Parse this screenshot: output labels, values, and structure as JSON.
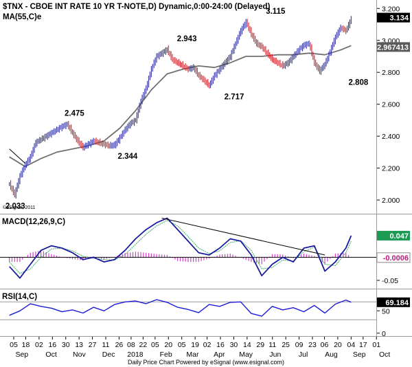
{
  "colors": {
    "up_bar": "#2f2fa0",
    "down_bar": "#d0202a",
    "ma_line": "#707070",
    "macd_line": "#1a1aa0",
    "signal_line": "#38a86a",
    "histogram": "#d040c8",
    "rsi_line": "#1a1ad8",
    "trendline": "#000000",
    "value_box": "#000000",
    "macd_value_box": "#1a9a52",
    "macd_hist_box": "#ffffff"
  },
  "chart_data": [
    {
      "type": "line",
      "panel": "price",
      "title": "$TNX - CBOE INT RATE 10 YR T-NOTE,D) Dynamic,0:00-24:00 (Delayed)",
      "subtitle": "MA(55,C)e",
      "watermark": "©eSignal, 2011",
      "ylim": [
        1.94,
        3.24
      ],
      "yticks": [
        2.0,
        2.2,
        2.4,
        2.6,
        2.8,
        3.0,
        3.2
      ],
      "ytick_labels": [
        "2.000",
        "2.200",
        "2.400",
        "2.600",
        "2.800",
        "3.000",
        "3.200"
      ],
      "last_value_labels": [
        {
          "label": "3.134",
          "value": 3.134,
          "style": "dark"
        },
        {
          "label": "2.967413",
          "value": 2.967,
          "style": "grey"
        }
      ],
      "series": [
        {
          "name": "$TNX",
          "style": "ohlc",
          "x": [
            0,
            4,
            8,
            12,
            16,
            20,
            24,
            28,
            32,
            36,
            40,
            44,
            48,
            52,
            56,
            60,
            64,
            68,
            72,
            76,
            80,
            84,
            88,
            92,
            96,
            100,
            104,
            108,
            112,
            116,
            120,
            124,
            128,
            132,
            136,
            140,
            144,
            148,
            152,
            156,
            160,
            164,
            168,
            172,
            176,
            180,
            184,
            188,
            192,
            196,
            200,
            204,
            208,
            212,
            216,
            220,
            224,
            228,
            232,
            236,
            240,
            244,
            248,
            252,
            256,
            260
          ],
          "values": [
            2.1,
            2.033,
            2.15,
            2.22,
            2.27,
            2.36,
            2.38,
            2.4,
            2.42,
            2.44,
            2.46,
            2.475,
            2.42,
            2.37,
            2.33,
            2.35,
            2.37,
            2.36,
            2.35,
            2.34,
            2.344,
            2.39,
            2.44,
            2.48,
            2.5,
            2.62,
            2.7,
            2.82,
            2.9,
            2.92,
            2.943,
            2.88,
            2.86,
            2.84,
            2.82,
            2.83,
            2.78,
            2.75,
            2.717,
            2.78,
            2.82,
            2.86,
            2.9,
            2.98,
            3.06,
            3.115,
            3.04,
            2.98,
            2.96,
            2.92,
            2.88,
            2.86,
            2.84,
            2.86,
            2.9,
            2.94,
            2.97,
            2.98,
            2.86,
            2.808,
            2.85,
            2.93,
            3.02,
            3.08,
            3.06,
            3.134
          ]
        },
        {
          "name": "MA(55,C)e",
          "x": [
            0,
            12,
            24,
            36,
            48,
            60,
            72,
            84,
            96,
            108,
            120,
            132,
            144,
            156,
            168,
            180,
            192,
            204,
            216,
            228,
            240,
            252,
            260
          ],
          "values": [
            2.27,
            2.21,
            2.26,
            2.3,
            2.32,
            2.34,
            2.37,
            2.45,
            2.56,
            2.69,
            2.79,
            2.82,
            2.84,
            2.83,
            2.86,
            2.9,
            2.9,
            2.91,
            2.91,
            2.92,
            2.91,
            2.94,
            2.967
          ]
        }
      ],
      "annotations": [
        {
          "label": "2.033",
          "x": 1,
          "value": 2.033
        },
        {
          "label": "2.475",
          "x": 11,
          "value": 2.475
        },
        {
          "label": "2.344",
          "x": 20,
          "value": 2.344
        },
        {
          "label": "2.943",
          "x": 30,
          "value": 2.943
        },
        {
          "label": "2.717",
          "x": 38,
          "value": 2.717
        },
        {
          "label": "3.115",
          "x": 45,
          "value": 3.115
        },
        {
          "label": "2.808",
          "x": 59,
          "value": 2.808
        }
      ],
      "trendlines": [
        {
          "x": [
            0,
            12
          ],
          "values": [
            2.32,
            2.23
          ]
        }
      ]
    },
    {
      "type": "line",
      "panel": "macd",
      "title": "MACD(12,26,9,C)",
      "ylim": [
        -0.065,
        0.09
      ],
      "yticks": [
        0,
        -0.05
      ],
      "ytick_labels": [
        "0",
        "-0.05"
      ],
      "last_value_labels": [
        {
          "label": "0.047",
          "value": 0.047,
          "style": "green"
        },
        {
          "label": "-0.0006",
          "value": -0.0006,
          "style": "white"
        }
      ],
      "series": [
        {
          "name": "MACD",
          "x": [
            0,
            8,
            16,
            24,
            32,
            40,
            48,
            56,
            64,
            72,
            80,
            88,
            96,
            104,
            112,
            120,
            128,
            136,
            144,
            152,
            160,
            168,
            176,
            184,
            192,
            200,
            208,
            216,
            224,
            232,
            240,
            248,
            256,
            260
          ],
          "values": [
            -0.02,
            -0.045,
            -0.015,
            0.015,
            0.025,
            0.02,
            0.01,
            -0.005,
            0.0,
            -0.01,
            -0.005,
            0.015,
            0.04,
            0.06,
            0.075,
            0.085,
            0.06,
            0.035,
            0.01,
            0.005,
            0.02,
            0.04,
            0.035,
            0.005,
            -0.04,
            -0.015,
            0.0,
            -0.01,
            0.02,
            0.025,
            -0.03,
            -0.01,
            0.02,
            0.047
          ]
        },
        {
          "name": "Signal",
          "x": [
            0,
            8,
            16,
            24,
            32,
            40,
            48,
            56,
            64,
            72,
            80,
            88,
            96,
            104,
            112,
            120,
            128,
            136,
            144,
            152,
            160,
            168,
            176,
            184,
            192,
            200,
            208,
            216,
            224,
            232,
            240,
            248,
            256,
            260
          ],
          "values": [
            -0.01,
            -0.035,
            -0.025,
            0.0,
            0.018,
            0.02,
            0.014,
            0.002,
            -0.002,
            -0.005,
            -0.006,
            0.006,
            0.028,
            0.05,
            0.068,
            0.08,
            0.068,
            0.045,
            0.02,
            0.008,
            0.014,
            0.032,
            0.036,
            0.015,
            -0.025,
            -0.022,
            -0.006,
            -0.008,
            0.012,
            0.022,
            -0.015,
            -0.018,
            0.01,
            0.035
          ]
        }
      ],
      "histogram": {
        "name": "Histogram",
        "x": [
          0,
          8,
          16,
          24,
          32,
          40,
          48,
          56,
          64,
          72,
          80,
          88,
          96,
          104,
          112,
          120,
          128,
          136,
          144,
          152,
          160,
          168,
          176,
          184,
          192,
          200,
          208,
          216,
          224,
          232,
          240,
          248,
          256,
          260
        ],
        "values": [
          -0.01,
          -0.01,
          0.01,
          0.015,
          0.007,
          0.0,
          -0.004,
          -0.007,
          0.002,
          -0.005,
          0.001,
          0.009,
          0.012,
          0.01,
          0.007,
          0.005,
          -0.008,
          -0.01,
          -0.01,
          -0.003,
          0.006,
          0.008,
          -0.001,
          -0.01,
          -0.015,
          0.007,
          0.006,
          -0.002,
          0.008,
          0.003,
          -0.015,
          0.008,
          0.01,
          -0.0006
        ]
      },
      "trendlines": [
        {
          "x": [
            116,
            240
          ],
          "values": [
            0.085,
            0.005
          ]
        }
      ]
    },
    {
      "type": "line",
      "panel": "rsi",
      "title": "RSI(14,C)",
      "ylim": [
        -5,
        95
      ],
      "yticks": [
        50,
        0
      ],
      "ytick_labels": [
        "50",
        "0"
      ],
      "reference_lines": [
        70,
        30
      ],
      "last_value_labels": [
        {
          "label": "69.184",
          "value": 69.184,
          "style": "dark"
        }
      ],
      "series": [
        {
          "name": "RSI",
          "x": [
            0,
            8,
            16,
            24,
            32,
            40,
            48,
            56,
            64,
            72,
            80,
            88,
            96,
            104,
            112,
            120,
            128,
            136,
            144,
            152,
            160,
            168,
            176,
            184,
            192,
            200,
            208,
            216,
            224,
            232,
            240,
            248,
            256,
            260
          ],
          "values": [
            40,
            50,
            66,
            60,
            56,
            48,
            52,
            45,
            58,
            50,
            64,
            70,
            72,
            66,
            75,
            69,
            58,
            53,
            46,
            64,
            60,
            69,
            70,
            44,
            38,
            60,
            52,
            57,
            48,
            62,
            45,
            65,
            74,
            69.184
          ]
        }
      ]
    }
  ],
  "x_axis": {
    "day_ticks": [
      {
        "label": "05",
        "x": 0
      },
      {
        "label": "18",
        "x": 9
      },
      {
        "label": "02",
        "x": 19
      },
      {
        "label": "16",
        "x": 29
      },
      {
        "label": "30",
        "x": 39
      },
      {
        "label": "13",
        "x": 49
      },
      {
        "label": "27",
        "x": 59
      },
      {
        "label": "11",
        "x": 69
      },
      {
        "label": "26",
        "x": 79
      },
      {
        "label": "08",
        "x": 88
      },
      {
        "label": "22",
        "x": 97
      },
      {
        "label": "05",
        "x": 106
      },
      {
        "label": "20",
        "x": 116
      },
      {
        "label": "05",
        "x": 126
      },
      {
        "label": "19",
        "x": 136
      },
      {
        "label": "02",
        "x": 145
      },
      {
        "label": "16",
        "x": 155
      },
      {
        "label": "30",
        "x": 165
      },
      {
        "label": "14",
        "x": 175
      },
      {
        "label": "29",
        "x": 185
      },
      {
        "label": "11",
        "x": 194
      },
      {
        "label": "25",
        "x": 204
      },
      {
        "label": "09",
        "x": 214
      },
      {
        "label": "23",
        "x": 224
      },
      {
        "label": "06",
        "x": 233
      },
      {
        "label": "20",
        "x": 243
      },
      {
        "label": "04",
        "x": 253
      },
      {
        "label": "17",
        "x": 262
      },
      {
        "label": "01",
        "x": 272
      }
    ],
    "month_labels": [
      {
        "label": "Sep",
        "x": 2
      },
      {
        "label": "Oct",
        "x": 24
      },
      {
        "label": "Nov",
        "x": 45
      },
      {
        "label": "Dec",
        "x": 67
      },
      {
        "label": "2018",
        "x": 87
      },
      {
        "label": "Feb",
        "x": 110
      },
      {
        "label": "Mar",
        "x": 130
      },
      {
        "label": "Apr",
        "x": 150
      },
      {
        "label": "May",
        "x": 170
      },
      {
        "label": "Jun",
        "x": 192
      },
      {
        "label": "Jul",
        "x": 213
      },
      {
        "label": "Aug",
        "x": 234
      },
      {
        "label": "Sep",
        "x": 255
      },
      {
        "label": "Oct",
        "x": 274
      }
    ],
    "xlim": [
      -4,
      276
    ]
  },
  "footer": "Daily Price Chart   Powered by eSignal (www.esignal.com)"
}
